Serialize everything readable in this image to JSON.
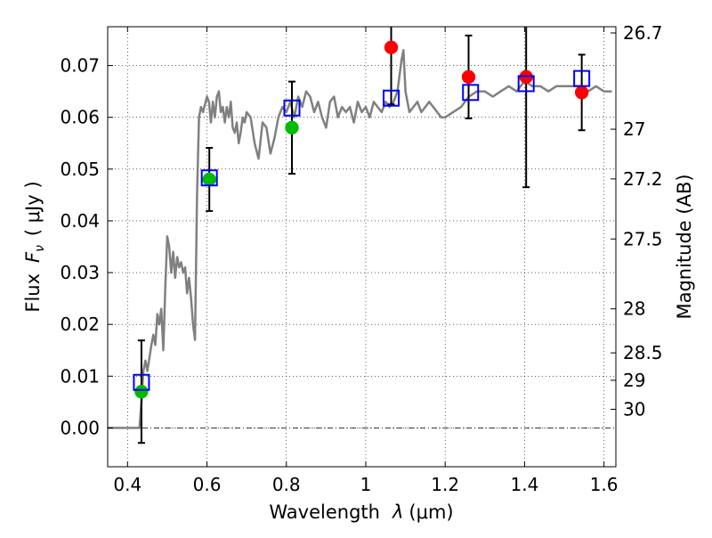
{
  "chart_data": {
    "type": "scatter",
    "xlabel": "Wavelength",
    "xlabel_symbol": "λ",
    "xlabel_unit": "(μm)",
    "ylabel": "Flux",
    "ylabel_symbol": "F",
    "ylabel_sub": "ν",
    "ylabel_unit": "( μJy )",
    "y2label": "Magnitude (AB)",
    "xlim": [
      0.35,
      1.63
    ],
    "ylim": [
      -0.0075,
      0.0775
    ],
    "grid": true,
    "x_ticks": [
      0.4,
      0.6,
      0.8,
      1.0,
      1.2,
      1.4,
      1.6
    ],
    "x_tick_labels": [
      "0.4",
      "0.6",
      "0.8",
      "1",
      "1.2",
      "1.4",
      "1.6"
    ],
    "y_ticks": [
      0.0,
      0.01,
      0.02,
      0.03,
      0.04,
      0.05,
      0.06,
      0.07
    ],
    "y_tick_labels": [
      "0.00",
      "0.01",
      "0.02",
      "0.03",
      "0.04",
      "0.05",
      "0.06",
      "0.07"
    ],
    "y2_ticks": [
      {
        "label": "26.7",
        "flux": 0.0763
      },
      {
        "label": "27",
        "flux": 0.0577
      },
      {
        "label": "27.2",
        "flux": 0.0481
      },
      {
        "label": "27.5",
        "flux": 0.0365
      },
      {
        "label": "28",
        "flux": 0.023
      },
      {
        "label": "28.5",
        "flux": 0.0145
      },
      {
        "label": "29",
        "flux": 0.0092
      },
      {
        "label": "30",
        "flux": 0.0036
      }
    ],
    "model_spectrum": {
      "color": "#808080",
      "points": [
        [
          0.35,
          0.0
        ],
        [
          0.42,
          0.0
        ],
        [
          0.43,
          0.0
        ],
        [
          0.435,
          0.005
        ],
        [
          0.44,
          0.011
        ],
        [
          0.445,
          0.013
        ],
        [
          0.45,
          0.011
        ],
        [
          0.46,
          0.016
        ],
        [
          0.465,
          0.018
        ],
        [
          0.47,
          0.016
        ],
        [
          0.475,
          0.022
        ],
        [
          0.48,
          0.02
        ],
        [
          0.485,
          0.023
        ],
        [
          0.49,
          0.015
        ],
        [
          0.495,
          0.027
        ],
        [
          0.5,
          0.037
        ],
        [
          0.505,
          0.035
        ],
        [
          0.51,
          0.03
        ],
        [
          0.515,
          0.034
        ],
        [
          0.52,
          0.029
        ],
        [
          0.525,
          0.033
        ],
        [
          0.53,
          0.031
        ],
        [
          0.535,
          0.032
        ],
        [
          0.54,
          0.03
        ],
        [
          0.545,
          0.031
        ],
        [
          0.55,
          0.026
        ],
        [
          0.555,
          0.029
        ],
        [
          0.56,
          0.025
        ],
        [
          0.565,
          0.02
        ],
        [
          0.57,
          0.017
        ],
        [
          0.575,
          0.045
        ],
        [
          0.58,
          0.06
        ],
        [
          0.585,
          0.062
        ],
        [
          0.59,
          0.061
        ],
        [
          0.6,
          0.064
        ],
        [
          0.605,
          0.063
        ],
        [
          0.61,
          0.059
        ],
        [
          0.615,
          0.063
        ],
        [
          0.62,
          0.06
        ],
        [
          0.625,
          0.064
        ],
        [
          0.63,
          0.065
        ],
        [
          0.635,
          0.061
        ],
        [
          0.64,
          0.062
        ],
        [
          0.645,
          0.059
        ],
        [
          0.65,
          0.062
        ],
        [
          0.655,
          0.06
        ],
        [
          0.66,
          0.063
        ],
        [
          0.665,
          0.058
        ],
        [
          0.67,
          0.057
        ],
        [
          0.675,
          0.059
        ],
        [
          0.68,
          0.055
        ],
        [
          0.685,
          0.057
        ],
        [
          0.69,
          0.06
        ],
        [
          0.695,
          0.059
        ],
        [
          0.7,
          0.061
        ],
        [
          0.71,
          0.06
        ],
        [
          0.72,
          0.055
        ],
        [
          0.73,
          0.052
        ],
        [
          0.74,
          0.059
        ],
        [
          0.75,
          0.058
        ],
        [
          0.76,
          0.053
        ],
        [
          0.77,
          0.056
        ],
        [
          0.78,
          0.06
        ],
        [
          0.79,
          0.062
        ],
        [
          0.8,
          0.061
        ],
        [
          0.81,
          0.063
        ],
        [
          0.82,
          0.06
        ],
        [
          0.83,
          0.064
        ],
        [
          0.84,
          0.062
        ],
        [
          0.85,
          0.065
        ],
        [
          0.86,
          0.064
        ],
        [
          0.87,
          0.061
        ],
        [
          0.88,
          0.063
        ],
        [
          0.89,
          0.06
        ],
        [
          0.9,
          0.058
        ],
        [
          0.91,
          0.063
        ],
        [
          0.92,
          0.064
        ],
        [
          0.93,
          0.06
        ],
        [
          0.94,
          0.062
        ],
        [
          0.95,
          0.061
        ],
        [
          0.96,
          0.062
        ],
        [
          0.97,
          0.059
        ],
        [
          0.98,
          0.063
        ],
        [
          0.99,
          0.061
        ],
        [
          1.0,
          0.062
        ],
        [
          1.01,
          0.06
        ],
        [
          1.02,
          0.063
        ],
        [
          1.03,
          0.062
        ],
        [
          1.04,
          0.061
        ],
        [
          1.05,
          0.063
        ],
        [
          1.06,
          0.062
        ],
        [
          1.07,
          0.063
        ],
        [
          1.08,
          0.065
        ],
        [
          1.09,
          0.071
        ],
        [
          1.095,
          0.073
        ],
        [
          1.1,
          0.065
        ],
        [
          1.11,
          0.061
        ],
        [
          1.12,
          0.062
        ],
        [
          1.13,
          0.063
        ],
        [
          1.14,
          0.061
        ],
        [
          1.15,
          0.062
        ],
        [
          1.16,
          0.063
        ],
        [
          1.17,
          0.062
        ],
        [
          1.18,
          0.061
        ],
        [
          1.19,
          0.06
        ],
        [
          1.2,
          0.06
        ],
        [
          1.22,
          0.061
        ],
        [
          1.24,
          0.062
        ],
        [
          1.26,
          0.064
        ],
        [
          1.28,
          0.065
        ],
        [
          1.3,
          0.065
        ],
        [
          1.32,
          0.064
        ],
        [
          1.34,
          0.065
        ],
        [
          1.36,
          0.066
        ],
        [
          1.38,
          0.065
        ],
        [
          1.39,
          0.066
        ],
        [
          1.4,
          0.067
        ],
        [
          1.42,
          0.066
        ],
        [
          1.44,
          0.066
        ],
        [
          1.46,
          0.065
        ],
        [
          1.48,
          0.066
        ],
        [
          1.5,
          0.066
        ],
        [
          1.52,
          0.066
        ],
        [
          1.54,
          0.066
        ],
        [
          1.56,
          0.065
        ],
        [
          1.58,
          0.066
        ],
        [
          1.6,
          0.065
        ],
        [
          1.62,
          0.065
        ]
      ]
    },
    "model_photometry": {
      "marker": "open-square",
      "color": "#0000ff",
      "points": [
        {
          "x": 0.435,
          "y": 0.0088
        },
        {
          "x": 0.606,
          "y": 0.0483
        },
        {
          "x": 0.814,
          "y": 0.0618
        },
        {
          "x": 1.064,
          "y": 0.0637
        },
        {
          "x": 1.264,
          "y": 0.0648
        },
        {
          "x": 1.404,
          "y": 0.0665
        },
        {
          "x": 1.544,
          "y": 0.0675
        }
      ]
    },
    "observed": [
      {
        "x": 0.435,
        "y": 0.007,
        "err_low": 0.0099,
        "err_high": 0.0099,
        "color": "#00bb00"
      },
      {
        "x": 0.606,
        "y": 0.048,
        "err_low": 0.0061,
        "err_high": 0.0061,
        "color": "#00bb00"
      },
      {
        "x": 0.814,
        "y": 0.058,
        "err_low": 0.0089,
        "err_high": 0.0089,
        "color": "#00bb00"
      },
      {
        "x": 1.064,
        "y": 0.0735,
        "err_low": 0.011,
        "err_high": 0.011,
        "color": "#ff0000"
      },
      {
        "x": 1.259,
        "y": 0.0678,
        "err_low": 0.008,
        "err_high": 0.008,
        "color": "#ff0000"
      },
      {
        "x": 1.404,
        "y": 0.0678,
        "err_low": 0.0213,
        "err_high": 0.0213,
        "color": "#ff0000"
      },
      {
        "x": 1.544,
        "y": 0.0648,
        "err_low": 0.0073,
        "err_high": 0.0073,
        "color": "#ff0000"
      }
    ]
  }
}
